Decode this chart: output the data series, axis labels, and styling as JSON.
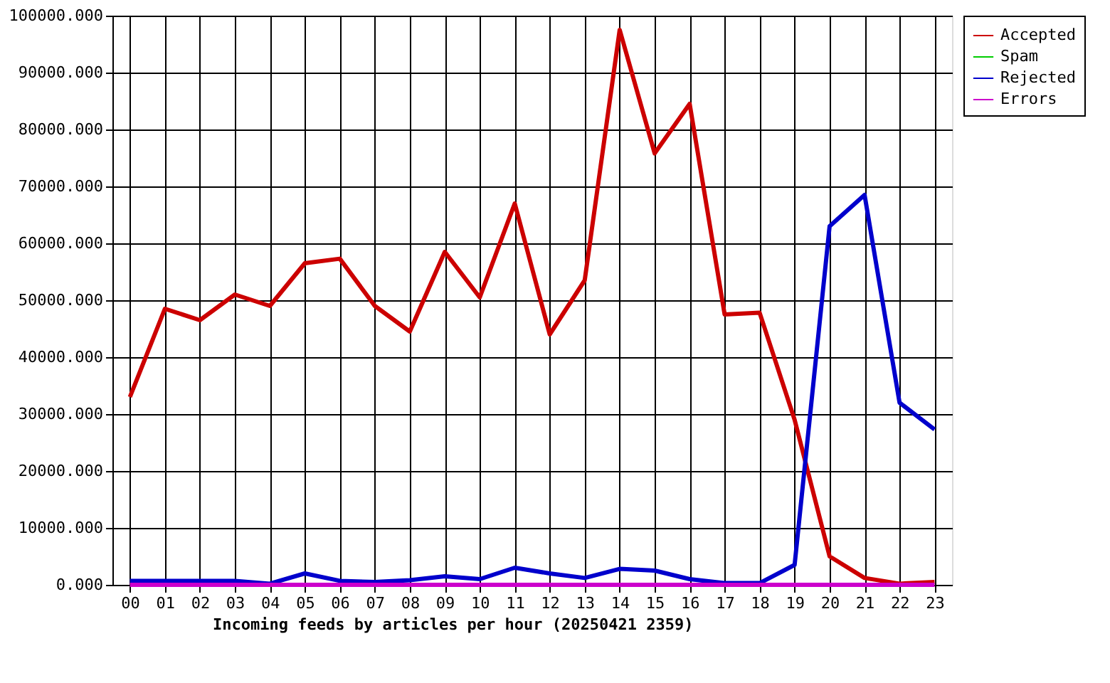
{
  "chart_data": {
    "type": "line",
    "xlabel": "Incoming feeds by articles per hour (20250421 2359)",
    "categories": [
      "00",
      "01",
      "02",
      "03",
      "04",
      "05",
      "06",
      "07",
      "08",
      "09",
      "10",
      "11",
      "12",
      "13",
      "14",
      "15",
      "16",
      "17",
      "18",
      "19",
      "20",
      "21",
      "22",
      "23"
    ],
    "series": [
      {
        "name": "Accepted",
        "color": "#cc0000",
        "values": [
          33000,
          48500,
          46500,
          51000,
          49000,
          56500,
          57300,
          49000,
          44500,
          58500,
          50500,
          67000,
          44000,
          53500,
          97500,
          75800,
          84500,
          47500,
          47800,
          29000,
          5000,
          1200,
          200,
          500
        ]
      },
      {
        "name": "Spam",
        "color": "#00cc00",
        "values": [
          null,
          null,
          null,
          null,
          null,
          null,
          null,
          null,
          null,
          null,
          null,
          null,
          null,
          null,
          null,
          null,
          null,
          null,
          null,
          null,
          null,
          null,
          null,
          null
        ]
      },
      {
        "name": "Rejected",
        "color": "#0000cc",
        "values": [
          700,
          700,
          700,
          700,
          200,
          2000,
          700,
          500,
          800,
          1500,
          1000,
          3000,
          2000,
          1200,
          2800,
          2500,
          1000,
          300,
          300,
          3500,
          63000,
          68500,
          32000,
          27300
        ]
      },
      {
        "name": "Errors",
        "color": "#cc00cc",
        "values": [
          0,
          0,
          0,
          0,
          0,
          0,
          0,
          0,
          0,
          0,
          0,
          0,
          0,
          0,
          0,
          0,
          0,
          0,
          0,
          0,
          0,
          0,
          0,
          0
        ]
      }
    ],
    "ylim": [
      0,
      100000
    ],
    "yticks": [
      {
        "value": 0,
        "label": "0.000"
      },
      {
        "value": 10000,
        "label": "10000.000"
      },
      {
        "value": 20000,
        "label": "20000.000"
      },
      {
        "value": 30000,
        "label": "30000.000"
      },
      {
        "value": 40000,
        "label": "40000.000"
      },
      {
        "value": 50000,
        "label": "50000.000"
      },
      {
        "value": 60000,
        "label": "60000.000"
      },
      {
        "value": 70000,
        "label": "70000.000"
      },
      {
        "value": 80000,
        "label": "80000.000"
      },
      {
        "value": 90000,
        "label": "90000.000"
      },
      {
        "value": 100000,
        "label": "100000.000"
      }
    ],
    "grid": true,
    "legend": "top right"
  }
}
